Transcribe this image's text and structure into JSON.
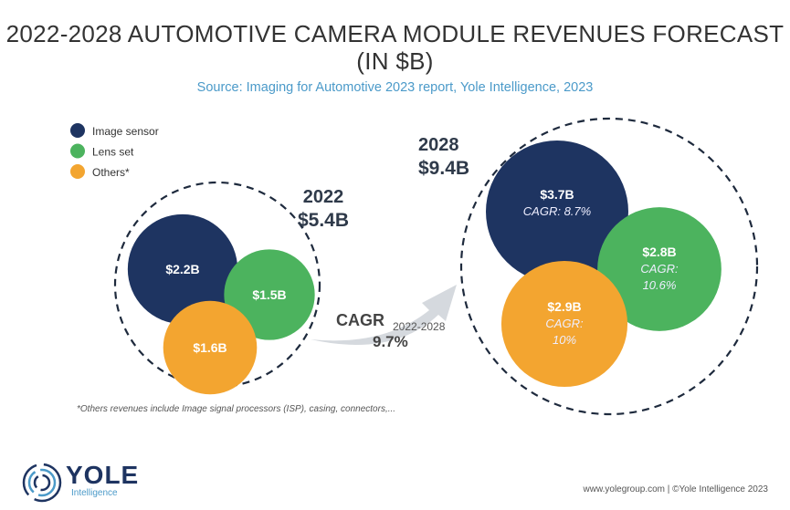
{
  "chart_data": {
    "type": "bubble",
    "title": "2022-2028 AUTOMOTIVE CAMERA MODULE REVENUES FORECAST (IN $B)",
    "subtitle": "Source: Imaging for Automotive 2023 report, Yole Intelligence, 2023",
    "legend": {
      "placement": "top-left",
      "items": [
        {
          "name": "Image sensor",
          "color": "#1e3461"
        },
        {
          "name": "Lens set",
          "color": "#4cb35e"
        },
        {
          "name": "Others*",
          "color": "#f3a530"
        }
      ]
    },
    "groups": [
      {
        "year": "2022",
        "total_label": "$5.4B",
        "total": 5.4,
        "values": [
          {
            "series": "Image sensor",
            "value": 2.2,
            "label": "$2.2B"
          },
          {
            "series": "Lens set",
            "value": 1.5,
            "label": "$1.5B"
          },
          {
            "series": "Others*",
            "value": 1.6,
            "label": "$1.6B"
          }
        ]
      },
      {
        "year": "2028",
        "total_label": "$9.4B",
        "total": 9.4,
        "values": [
          {
            "series": "Image sensor",
            "value": 3.7,
            "label": "$3.7B",
            "cagr": "CAGR: 8.7%"
          },
          {
            "series": "Lens set",
            "value": 2.8,
            "label": "$2.8B",
            "cagr": "CAGR: 10.6%"
          },
          {
            "series": "Others*",
            "value": 2.9,
            "label": "$2.9B",
            "cagr": "CAGR: 10%"
          }
        ]
      }
    ],
    "cagr": {
      "label": "CAGR",
      "period": "2022-2028",
      "value": "9.7%"
    },
    "footnote": "*Others revenues include Image signal processors (ISP), casing, connectors,..."
  },
  "footer": {
    "logo": "YOLE",
    "logo_sub": "Intelligence",
    "credit": "www.yolegroup.com | ©Yole Intelligence 2023"
  }
}
